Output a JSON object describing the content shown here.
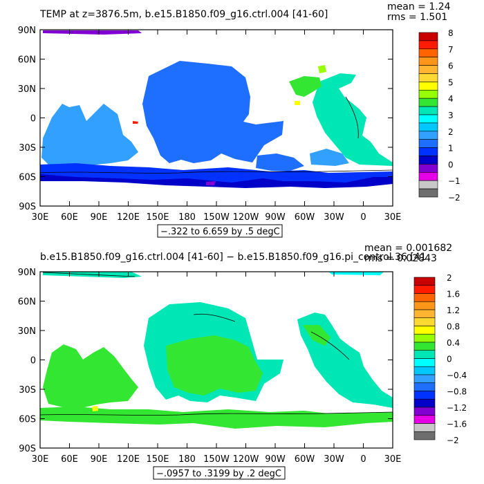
{
  "chart_data": [
    {
      "type": "heatmap",
      "title": "TEMP at z=3876.5m, b.e15.B1850.f09_g16.ctrl.004 [41-60]",
      "stats": [
        "mean = 1.24",
        "rms = 1.501"
      ],
      "range_label": "−.322 to 6.659 by .5 degC",
      "x_ticks": [
        "30E",
        "60E",
        "90E",
        "120E",
        "150E",
        "180",
        "150W",
        "120W",
        "90W",
        "60W",
        "30W",
        "0",
        "30E"
      ],
      "y_ticks": [
        "90N",
        "60N",
        "30N",
        "0",
        "30S",
        "60S",
        "90S"
      ],
      "colorbar_labels": [
        "8",
        "7",
        "6",
        "5",
        "4",
        "3",
        "2",
        "1",
        "0",
        "−1",
        "−2"
      ],
      "colorbar_colors": [
        "#c80000",
        "#ff1a00",
        "#ff6400",
        "#ff9619",
        "#ffb432",
        "#ffd832",
        "#ffff00",
        "#96ff00",
        "#32e632",
        "#00e6b4",
        "#00ffff",
        "#00c8ff",
        "#32a0ff",
        "#1e6eff",
        "#0032ff",
        "#0000c8",
        "#8200d2",
        "#e600e6",
        "#c8c8c8",
        "#6e6e6e"
      ]
    },
    {
      "type": "heatmap",
      "title": "b.e15.B1850.f09_g16.ctrl.004 [41-60] − b.e15.B1850.f09_g16.pi_control.36 [41",
      "stats": [
        "mean = 0.001682",
        "rms = 0.02843"
      ],
      "range_label": "−.0957 to .3199 by .2 degC",
      "x_ticks": [
        "30E",
        "60E",
        "90E",
        "120E",
        "150E",
        "180",
        "150W",
        "120W",
        "90W",
        "60W",
        "30W",
        "0",
        "30E"
      ],
      "y_ticks": [
        "90N",
        "60N",
        "30N",
        "0",
        "30S",
        "60S",
        "90S"
      ],
      "colorbar_labels": [
        "2",
        "1.6",
        "1.2",
        "0.8",
        "0.4",
        "0",
        "−0.4",
        "−0.8",
        "−1.2",
        "−1.6",
        "−2"
      ],
      "colorbar_colors": [
        "#c80000",
        "#ff1a00",
        "#ff6400",
        "#ff9619",
        "#ffb432",
        "#ffd832",
        "#ffff00",
        "#96ff00",
        "#32e632",
        "#00e6b4",
        "#00ffff",
        "#00c8ff",
        "#32a0ff",
        "#1e6eff",
        "#0032ff",
        "#0000c8",
        "#8200d2",
        "#e600e6",
        "#c8c8c8",
        "#6e6e6e"
      ]
    }
  ]
}
